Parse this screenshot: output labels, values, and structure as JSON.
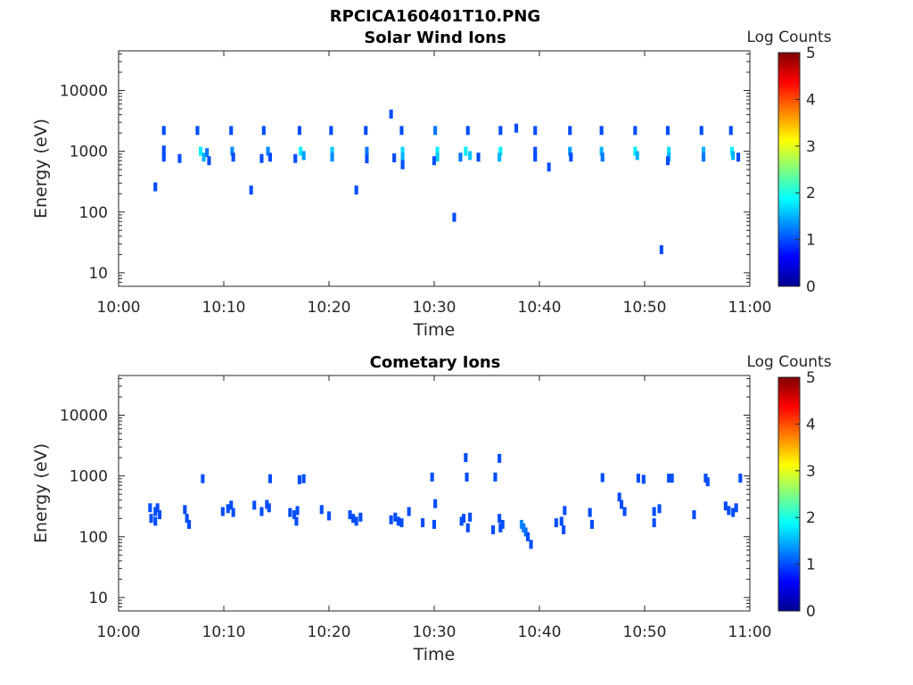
{
  "figure": {
    "title": "RPCICA160401T10.PNG"
  },
  "colorbar": {
    "label": "Log Counts",
    "ticks": [
      0,
      1,
      2,
      3,
      4,
      5
    ],
    "range": [
      0,
      5
    ],
    "colormap": [
      "#00008f",
      "#0000ff",
      "#0080ff",
      "#00ffff",
      "#80ff80",
      "#ffff00",
      "#ff8000",
      "#ff0000",
      "#800000"
    ]
  },
  "chart_data": [
    {
      "type": "heatmap",
      "title": "Solar Wind Ions",
      "xlabel": "Time",
      "ylabel": "Energy (eV)",
      "xticks": [
        "10:00",
        "10:10",
        "10:20",
        "10:30",
        "10:40",
        "10:50",
        "11:00"
      ],
      "xlim_minutes": [
        0,
        60
      ],
      "yscale": "log",
      "ylim": [
        6,
        45000
      ],
      "yticks": [
        10,
        100,
        1000,
        10000
      ],
      "ytick_labels": [
        "10",
        "100",
        "1000",
        "10000"
      ],
      "cells": [
        [
          4.3,
          2200,
          1.0
        ],
        [
          4.3,
          800,
          1.0
        ],
        [
          4.3,
          1050,
          1.0
        ],
        [
          3.5,
          260,
          1.0
        ],
        [
          5.8,
          760,
          1.0
        ],
        [
          7.5,
          2200,
          1.0
        ],
        [
          7.8,
          1000,
          1.8
        ],
        [
          8.1,
          800,
          1.5
        ],
        [
          8.4,
          950,
          1.2
        ],
        [
          8.6,
          700,
          1.0
        ],
        [
          10.7,
          2200,
          1.0
        ],
        [
          10.8,
          1000,
          1.3
        ],
        [
          10.9,
          800,
          1.0
        ],
        [
          12.6,
          230,
          1.0
        ],
        [
          13.8,
          2200,
          1.0
        ],
        [
          14.2,
          1000,
          1.3
        ],
        [
          14.4,
          800,
          1.0
        ],
        [
          13.6,
          760,
          1.0
        ],
        [
          17.2,
          2200,
          1.0
        ],
        [
          17.3,
          1000,
          1.8
        ],
        [
          17.6,
          850,
          1.4
        ],
        [
          16.8,
          760,
          1.0
        ],
        [
          20.2,
          2200,
          1.0
        ],
        [
          20.3,
          1000,
          1.6
        ],
        [
          20.3,
          800,
          1.3
        ],
        [
          22.6,
          230,
          1.0
        ],
        [
          23.5,
          2200,
          1.0
        ],
        [
          23.6,
          1000,
          1.2
        ],
        [
          23.6,
          750,
          1.0
        ],
        [
          25.9,
          4100,
          1.0
        ],
        [
          26.2,
          780,
          1.0
        ],
        [
          26.9,
          2200,
          1.0
        ],
        [
          27.0,
          1000,
          1.7
        ],
        [
          27.0,
          800,
          1.5
        ],
        [
          27.0,
          600,
          1.0
        ],
        [
          30.1,
          2200,
          1.2
        ],
        [
          30.3,
          1000,
          1.8
        ],
        [
          30.3,
          800,
          1.6
        ],
        [
          30.0,
          700,
          1.0
        ],
        [
          31.9,
          82,
          1.0
        ],
        [
          33.2,
          2200,
          1.0
        ],
        [
          33.0,
          1000,
          1.8
        ],
        [
          33.4,
          850,
          1.6
        ],
        [
          32.5,
          800,
          1.2
        ],
        [
          34.2,
          800,
          1.0
        ],
        [
          36.3,
          2200,
          1.0
        ],
        [
          36.3,
          1000,
          1.8
        ],
        [
          36.2,
          800,
          1.5
        ],
        [
          37.8,
          2400,
          1.0
        ],
        [
          39.6,
          2200,
          1.0
        ],
        [
          39.6,
          1000,
          1.0
        ],
        [
          39.6,
          800,
          1.0
        ],
        [
          40.9,
          550,
          1.0
        ],
        [
          42.9,
          2200,
          1.0
        ],
        [
          42.9,
          1000,
          1.4
        ],
        [
          43.0,
          800,
          1.0
        ],
        [
          45.9,
          2200,
          1.0
        ],
        [
          45.9,
          1000,
          1.5
        ],
        [
          46.0,
          800,
          1.2
        ],
        [
          49.1,
          2200,
          1.0
        ],
        [
          49.1,
          1000,
          1.8
        ],
        [
          49.3,
          850,
          1.5
        ],
        [
          51.6,
          24,
          1.0
        ],
        [
          52.2,
          2200,
          1.0
        ],
        [
          52.3,
          1000,
          1.7
        ],
        [
          52.3,
          800,
          1.5
        ],
        [
          52.2,
          700,
          1.0
        ],
        [
          55.4,
          2200,
          1.0
        ],
        [
          55.6,
          1000,
          1.5
        ],
        [
          55.6,
          800,
          1.2
        ],
        [
          58.2,
          2200,
          1.0
        ],
        [
          58.3,
          1000,
          1.8
        ],
        [
          58.4,
          850,
          1.5
        ],
        [
          58.9,
          800,
          1.0
        ]
      ]
    },
    {
      "type": "heatmap",
      "title": "Cometary Ions",
      "xlabel": "Time",
      "ylabel": "Energy (eV)",
      "xticks": [
        "10:00",
        "10:10",
        "10:20",
        "10:30",
        "10:40",
        "10:50",
        "11:00"
      ],
      "xlim_minutes": [
        0,
        60
      ],
      "yscale": "log",
      "ylim": [
        6,
        45000
      ],
      "yticks": [
        10,
        100,
        1000,
        10000
      ],
      "ytick_labels": [
        "10",
        "100",
        "1000",
        "10000"
      ],
      "cells": [
        [
          3.0,
          300,
          1.0
        ],
        [
          3.1,
          200,
          1.0
        ],
        [
          3.5,
          260,
          1.0
        ],
        [
          3.7,
          300,
          1.0
        ],
        [
          3.9,
          230,
          1.0
        ],
        [
          3.5,
          180,
          1.0
        ],
        [
          6.3,
          280,
          1.0
        ],
        [
          6.5,
          200,
          1.0
        ],
        [
          6.7,
          160,
          1.0
        ],
        [
          8.0,
          900,
          1.0
        ],
        [
          9.9,
          260,
          1.0
        ],
        [
          10.4,
          290,
          1.0
        ],
        [
          10.7,
          330,
          1.0
        ],
        [
          10.9,
          250,
          1.0
        ],
        [
          12.9,
          330,
          1.0
        ],
        [
          13.6,
          260,
          1.0
        ],
        [
          14.1,
          340,
          1.0
        ],
        [
          14.3,
          300,
          1.0
        ],
        [
          14.4,
          900,
          1.0
        ],
        [
          16.3,
          250,
          1.0
        ],
        [
          16.7,
          230,
          1.0
        ],
        [
          17.0,
          270,
          1.0
        ],
        [
          16.9,
          180,
          1.0
        ],
        [
          17.2,
          870,
          1.0
        ],
        [
          17.6,
          900,
          1.0
        ],
        [
          19.3,
          280,
          1.0
        ],
        [
          20.0,
          220,
          1.0
        ],
        [
          22.0,
          230,
          1.0
        ],
        [
          22.3,
          200,
          1.0
        ],
        [
          22.6,
          180,
          1.0
        ],
        [
          23.0,
          210,
          1.0
        ],
        [
          25.9,
          190,
          1.0
        ],
        [
          26.3,
          210,
          1.0
        ],
        [
          26.6,
          180,
          1.0
        ],
        [
          26.9,
          170,
          1.0
        ],
        [
          27.6,
          260,
          1.0
        ],
        [
          28.9,
          170,
          1.0
        ],
        [
          29.8,
          960,
          1.0
        ],
        [
          30.0,
          160,
          1.0
        ],
        [
          30.1,
          350,
          1.0
        ],
        [
          32.6,
          180,
          1.0
        ],
        [
          32.8,
          200,
          1.0
        ],
        [
          33.0,
          2000,
          1.0
        ],
        [
          33.1,
          960,
          1.0
        ],
        [
          33.2,
          140,
          1.0
        ],
        [
          33.4,
          210,
          1.0
        ],
        [
          35.6,
          130,
          1.0
        ],
        [
          35.8,
          960,
          1.0
        ],
        [
          36.2,
          1950,
          1.0
        ],
        [
          36.5,
          160,
          1.0
        ],
        [
          36.2,
          200,
          1.0
        ],
        [
          36.3,
          140,
          1.0
        ],
        [
          38.3,
          160,
          1.3
        ],
        [
          38.5,
          140,
          1.2
        ],
        [
          38.7,
          120,
          1.2
        ],
        [
          38.9,
          100,
          1.0
        ],
        [
          39.2,
          75,
          1.0
        ],
        [
          41.6,
          170,
          1.0
        ],
        [
          42.1,
          180,
          1.0
        ],
        [
          42.3,
          130,
          1.0
        ],
        [
          42.4,
          270,
          1.0
        ],
        [
          44.8,
          250,
          1.0
        ],
        [
          45.0,
          160,
          1.0
        ],
        [
          46.0,
          940,
          1.0
        ],
        [
          47.6,
          450,
          1.0
        ],
        [
          47.8,
          340,
          1.0
        ],
        [
          48.1,
          260,
          1.0
        ],
        [
          49.4,
          920,
          1.0
        ],
        [
          49.9,
          880,
          1.0
        ],
        [
          50.9,
          170,
          1.0
        ],
        [
          50.9,
          260,
          1.0
        ],
        [
          51.4,
          290,
          1.0
        ],
        [
          52.3,
          920,
          1.0
        ],
        [
          52.6,
          920,
          1.0
        ],
        [
          54.7,
          230,
          1.0
        ],
        [
          55.8,
          920,
          1.0
        ],
        [
          56.0,
          800,
          1.0
        ],
        [
          57.7,
          320,
          1.0
        ],
        [
          58.0,
          270,
          1.0
        ],
        [
          58.4,
          250,
          1.0
        ],
        [
          58.7,
          300,
          1.0
        ],
        [
          59.1,
          920,
          1.0
        ]
      ]
    }
  ]
}
